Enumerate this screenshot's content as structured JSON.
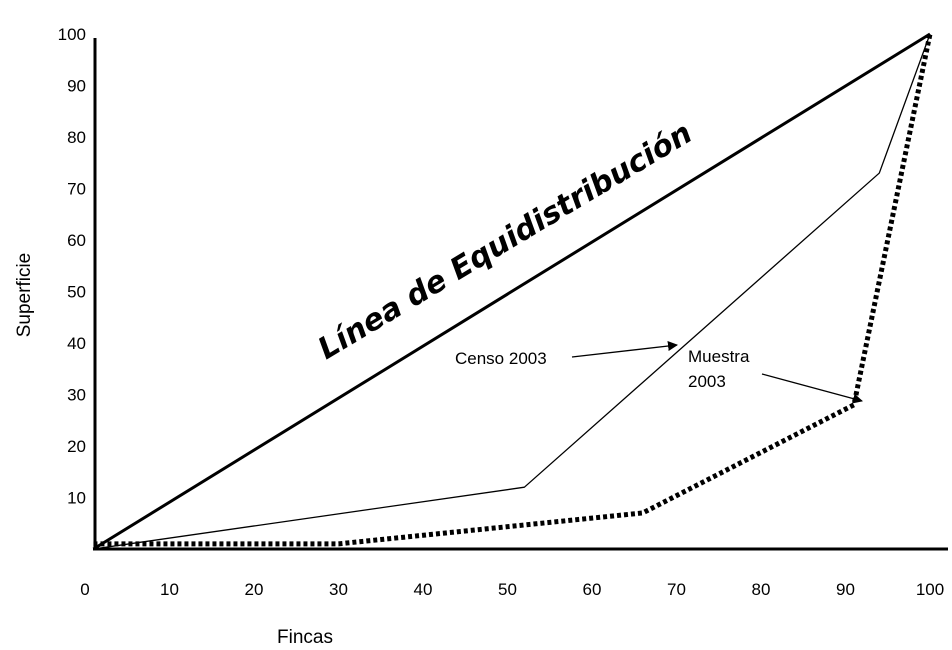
{
  "chart_data": {
    "type": "line",
    "xlabel": "Fincas",
    "ylabel": "Superficie",
    "xlim": [
      0,
      100
    ],
    "ylim": [
      0,
      100
    ],
    "x_ticks": [
      "0",
      "10",
      "20",
      "30",
      "40",
      "50",
      "60",
      "70",
      "80",
      "90",
      "100"
    ],
    "y_ticks": [
      "10",
      "20",
      "30",
      "40",
      "50",
      "60",
      "70",
      "80",
      "90",
      "100"
    ],
    "series": [
      {
        "name": "Línea de Equidistribución",
        "style": "solid-thick",
        "color": "#000000",
        "points": [
          [
            1,
            0
          ],
          [
            100,
            100
          ]
        ]
      },
      {
        "name": "Censo 2003",
        "style": "solid-thin",
        "color": "#000000",
        "points": [
          [
            1,
            0
          ],
          [
            52,
            12
          ],
          [
            94,
            73
          ],
          [
            100,
            100
          ]
        ]
      },
      {
        "name": "Muestra 2003",
        "style": "dotted-thick",
        "color": "#000000",
        "points": [
          [
            1,
            1
          ],
          [
            30,
            1
          ],
          [
            66,
            7
          ],
          [
            91,
            28
          ],
          [
            100,
            100
          ]
        ]
      }
    ],
    "annotations": [
      {
        "text": "Línea de Equidistribución",
        "kind": "diagonal-label"
      },
      {
        "text": "Censo 2003",
        "kind": "arrow-label"
      },
      {
        "text": "Muestra",
        "kind": "arrow-label"
      },
      {
        "text": "2003",
        "kind": "arrow-label"
      }
    ],
    "grid": false
  }
}
